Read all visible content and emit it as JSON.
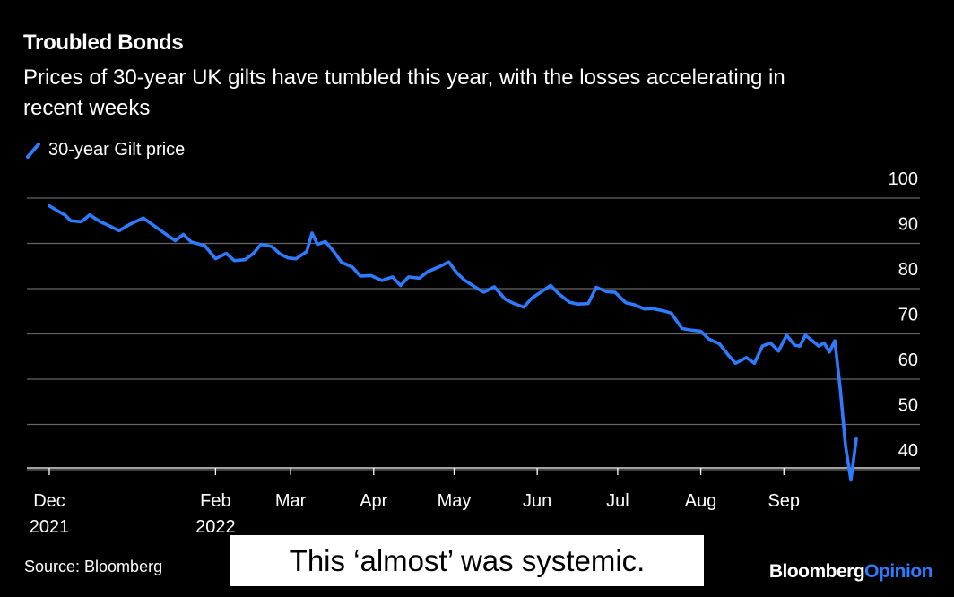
{
  "header": {
    "title": "Troubled Bonds",
    "subtitle": "Prices of 30-year UK gilts have tumbled this year, with the losses accelerating in recent weeks"
  },
  "legend": {
    "label": "30-year Gilt price",
    "icon": "line-slash-icon"
  },
  "footer": {
    "source": "Source: Bloomberg",
    "caption": "This ‘almost’ was systemic.",
    "brand_part1": "Bloomberg",
    "brand_part2": "Opinion"
  },
  "colors": {
    "background": "#000000",
    "line": "#2f7bff",
    "grid": "#666666",
    "text": "#ffffff",
    "brand_accent": "#2f7bff"
  },
  "chart_data": {
    "type": "line",
    "title": "Troubled Bonds",
    "subtitle": "Prices of 30-year UK gilts have tumbled this year, with the losses accelerating in recent weeks",
    "ylim": [
      37,
      102
    ],
    "y_ticks": [
      100,
      90,
      80,
      70,
      60,
      50,
      40
    ],
    "y_axis_side": "right",
    "grid": true,
    "x_ticks": [
      {
        "line1": "Dec",
        "line2": "2021",
        "date": "2021-12-01"
      },
      {
        "line1": "Feb",
        "line2": "2022",
        "date": "2022-02-01"
      },
      {
        "line1": "Mar",
        "line2": "",
        "date": "2022-03-01"
      },
      {
        "line1": "Apr",
        "line2": "",
        "date": "2022-04-01"
      },
      {
        "line1": "May",
        "line2": "",
        "date": "2022-05-01"
      },
      {
        "line1": "Jun",
        "line2": "",
        "date": "2022-06-01"
      },
      {
        "line1": "Jul",
        "line2": "",
        "date": "2022-07-01"
      },
      {
        "line1": "Aug",
        "line2": "",
        "date": "2022-08-01"
      },
      {
        "line1": "Sep",
        "line2": "",
        "date": "2022-09-01"
      }
    ],
    "xlim": [
      "2021-12-01",
      "2022-09-28"
    ],
    "series": [
      {
        "name": "30-year Gilt price",
        "color": "#2f7bff",
        "points": [
          [
            "2021-12-01",
            98.3
          ],
          [
            "2021-12-04",
            97.2
          ],
          [
            "2021-12-07",
            96.2
          ],
          [
            "2021-12-09",
            95.0
          ],
          [
            "2021-12-13",
            94.8
          ],
          [
            "2021-12-16",
            96.3
          ],
          [
            "2021-12-20",
            94.8
          ],
          [
            "2021-12-23",
            94.0
          ],
          [
            "2021-12-27",
            92.8
          ],
          [
            "2021-12-31",
            94.2
          ],
          [
            "2022-01-05",
            95.6
          ],
          [
            "2022-01-10",
            93.5
          ],
          [
            "2022-01-14",
            91.8
          ],
          [
            "2022-01-17",
            90.6
          ],
          [
            "2022-01-20",
            92.0
          ],
          [
            "2022-01-23",
            90.3
          ],
          [
            "2022-01-28",
            89.5
          ],
          [
            "2022-02-01",
            86.6
          ],
          [
            "2022-02-05",
            87.8
          ],
          [
            "2022-02-08",
            86.2
          ],
          [
            "2022-02-12",
            86.4
          ],
          [
            "2022-02-15",
            87.7
          ],
          [
            "2022-02-18",
            89.8
          ],
          [
            "2022-02-22",
            89.3
          ],
          [
            "2022-02-25",
            87.7
          ],
          [
            "2022-02-28",
            86.8
          ],
          [
            "2022-03-03",
            86.6
          ],
          [
            "2022-03-07",
            88.2
          ],
          [
            "2022-03-09",
            92.3
          ],
          [
            "2022-03-11",
            89.8
          ],
          [
            "2022-03-14",
            90.4
          ],
          [
            "2022-03-17",
            88.3
          ],
          [
            "2022-03-20",
            85.8
          ],
          [
            "2022-03-24",
            84.8
          ],
          [
            "2022-03-27",
            82.8
          ],
          [
            "2022-03-31",
            82.9
          ],
          [
            "2022-04-04",
            81.8
          ],
          [
            "2022-04-08",
            82.6
          ],
          [
            "2022-04-11",
            80.7
          ],
          [
            "2022-04-14",
            82.6
          ],
          [
            "2022-04-18",
            82.3
          ],
          [
            "2022-04-21",
            83.7
          ],
          [
            "2022-04-26",
            85.0
          ],
          [
            "2022-04-29",
            85.9
          ],
          [
            "2022-05-02",
            83.5
          ],
          [
            "2022-05-05",
            81.8
          ],
          [
            "2022-05-09",
            80.3
          ],
          [
            "2022-05-12",
            79.2
          ],
          [
            "2022-05-16",
            80.4
          ],
          [
            "2022-05-20",
            77.7
          ],
          [
            "2022-05-23",
            76.8
          ],
          [
            "2022-05-27",
            75.9
          ],
          [
            "2022-05-30",
            77.9
          ],
          [
            "2022-06-02",
            79.1
          ],
          [
            "2022-06-06",
            80.7
          ],
          [
            "2022-06-09",
            78.9
          ],
          [
            "2022-06-13",
            77.0
          ],
          [
            "2022-06-16",
            76.6
          ],
          [
            "2022-06-20",
            76.7
          ],
          [
            "2022-06-23",
            80.3
          ],
          [
            "2022-06-27",
            79.3
          ],
          [
            "2022-06-30",
            79.2
          ],
          [
            "2022-07-04",
            76.9
          ],
          [
            "2022-07-07",
            76.5
          ],
          [
            "2022-07-11",
            75.5
          ],
          [
            "2022-07-14",
            75.6
          ],
          [
            "2022-07-18",
            75.1
          ],
          [
            "2022-07-21",
            74.6
          ],
          [
            "2022-07-25",
            71.2
          ],
          [
            "2022-07-28",
            70.9
          ],
          [
            "2022-08-01",
            70.6
          ],
          [
            "2022-08-04",
            68.9
          ],
          [
            "2022-08-08",
            67.8
          ],
          [
            "2022-08-11",
            65.5
          ],
          [
            "2022-08-14",
            63.5
          ],
          [
            "2022-08-18",
            64.8
          ],
          [
            "2022-08-21",
            63.5
          ],
          [
            "2022-08-24",
            67.3
          ],
          [
            "2022-08-27",
            68.0
          ],
          [
            "2022-08-30",
            66.2
          ],
          [
            "2022-09-02",
            69.7
          ],
          [
            "2022-09-05",
            67.5
          ],
          [
            "2022-09-07",
            67.3
          ],
          [
            "2022-09-09",
            69.7
          ],
          [
            "2022-09-12",
            68.3
          ],
          [
            "2022-09-14",
            67.3
          ],
          [
            "2022-09-16",
            68.0
          ],
          [
            "2022-09-18",
            66.0
          ],
          [
            "2022-09-20",
            68.5
          ],
          [
            "2022-09-22",
            57.9
          ],
          [
            "2022-09-24",
            45.3
          ],
          [
            "2022-09-26",
            37.7
          ],
          [
            "2022-09-28",
            46.8
          ]
        ]
      }
    ]
  }
}
